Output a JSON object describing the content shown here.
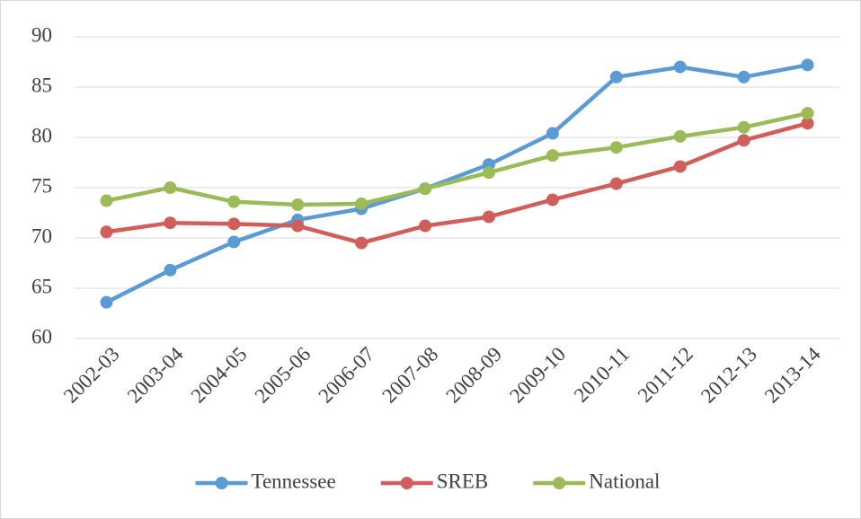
{
  "chart_data": {
    "type": "line",
    "categories": [
      "2002-03",
      "2003-04",
      "2004-05",
      "2005-06",
      "2006-07",
      "2007-08",
      "2008-09",
      "2009-10",
      "2010-11",
      "2011-12",
      "2012-13",
      "2013-14"
    ],
    "series": [
      {
        "name": "Tennessee",
        "color": "#5b9bd5",
        "values": [
          63.6,
          66.8,
          69.6,
          71.8,
          72.9,
          74.9,
          77.3,
          80.4,
          86.0,
          87.0,
          86.0,
          87.2
        ]
      },
      {
        "name": "SREB",
        "color": "#d05f5c",
        "values": [
          70.6,
          71.5,
          71.4,
          71.2,
          69.5,
          71.2,
          72.1,
          73.8,
          75.4,
          77.1,
          79.7,
          81.4
        ]
      },
      {
        "name": "National",
        "color": "#9bbb59",
        "values": [
          73.7,
          75.0,
          73.6,
          73.3,
          73.4,
          74.9,
          76.5,
          78.2,
          79.0,
          80.1,
          81.0,
          82.4
        ]
      }
    ],
    "ylim": [
      60,
      90
    ],
    "yticks": [
      60,
      65,
      70,
      75,
      80,
      85,
      90
    ],
    "grid": true,
    "legend": "bottom"
  }
}
